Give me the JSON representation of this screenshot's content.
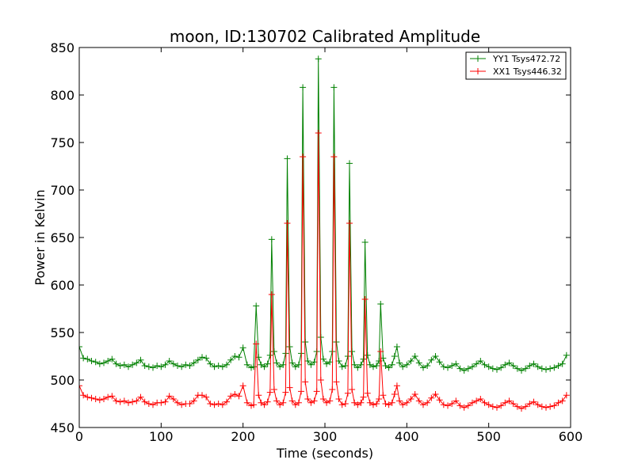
{
  "chart_data": {
    "type": "line",
    "title": "moon, ID:130702 Calibrated Amplitude",
    "xlabel": "Time (seconds)",
    "ylabel": "Power in Kelvin",
    "xlim": [
      0,
      600
    ],
    "ylim": [
      450,
      850
    ],
    "xticks": [
      0,
      100,
      200,
      300,
      400,
      500,
      600
    ],
    "yticks": [
      450,
      500,
      550,
      600,
      650,
      700,
      750,
      800,
      850
    ],
    "grid": false,
    "legend_position": "top-right",
    "series": [
      {
        "name": "YY1 Tsys472.72",
        "color": "#008000",
        "marker": "+",
        "x": [
          0,
          5,
          10,
          15,
          20,
          25,
          30,
          35,
          40,
          45,
          50,
          55,
          60,
          65,
          70,
          75,
          80,
          85,
          90,
          95,
          100,
          105,
          110,
          115,
          120,
          125,
          130,
          135,
          140,
          145,
          150,
          155,
          160,
          165,
          170,
          175,
          180,
          185,
          190,
          195,
          200,
          205,
          210,
          213,
          216,
          219,
          222,
          226,
          230,
          233,
          235,
          238,
          241,
          245,
          249,
          252,
          254,
          257,
          260,
          264,
          268,
          271,
          273,
          276,
          279,
          283,
          287,
          290,
          292,
          295,
          298,
          302,
          306,
          309,
          311,
          314,
          317,
          321,
          325,
          328,
          330,
          333,
          336,
          340,
          344,
          347,
          349,
          352,
          355,
          359,
          363,
          366,
          368,
          371,
          374,
          378,
          382,
          385,
          388,
          391,
          395,
          400,
          405,
          410,
          415,
          420,
          425,
          430,
          435,
          440,
          445,
          450,
          455,
          460,
          465,
          470,
          475,
          480,
          485,
          490,
          495,
          500,
          505,
          510,
          515,
          520,
          525,
          530,
          535,
          540,
          545,
          550,
          555,
          560,
          565,
          570,
          575,
          580,
          585,
          590,
          595
        ],
        "y": [
          535,
          523,
          522,
          520,
          519,
          517,
          518,
          520,
          522,
          517,
          515,
          516,
          514,
          516,
          518,
          521,
          515,
          514,
          513,
          515,
          514,
          516,
          520,
          517,
          515,
          514,
          516,
          515,
          518,
          521,
          524,
          523,
          517,
          514,
          515,
          514,
          516,
          521,
          525,
          524,
          534,
          516,
          513,
          514,
          578,
          524,
          516,
          514,
          517,
          526,
          648,
          530,
          518,
          514,
          516,
          528,
          733,
          535,
          518,
          514,
          516,
          528,
          808,
          540,
          520,
          516,
          519,
          530,
          838,
          545,
          522,
          517,
          519,
          530,
          808,
          540,
          520,
          514,
          515,
          525,
          728,
          530,
          516,
          513,
          516,
          522,
          645,
          526,
          516,
          514,
          515,
          520,
          580,
          523,
          515,
          513,
          516,
          525,
          535,
          518,
          514,
          516,
          520,
          525,
          518,
          513,
          515,
          521,
          525,
          519,
          514,
          513,
          515,
          517,
          512,
          510,
          512,
          514,
          517,
          520,
          516,
          514,
          512,
          511,
          513,
          516,
          518,
          515,
          512,
          510,
          512,
          515,
          517,
          514,
          512,
          511,
          512,
          513,
          515,
          517,
          526
        ]
      },
      {
        "name": "XX1 Tsys446.32",
        "color": "#ff0000",
        "marker": "+",
        "x": [
          0,
          5,
          10,
          15,
          20,
          25,
          30,
          35,
          40,
          45,
          50,
          55,
          60,
          65,
          70,
          75,
          80,
          85,
          90,
          95,
          100,
          105,
          110,
          115,
          120,
          125,
          130,
          135,
          140,
          145,
          150,
          155,
          160,
          165,
          170,
          175,
          180,
          185,
          190,
          195,
          200,
          205,
          210,
          213,
          216,
          219,
          222,
          226,
          230,
          233,
          235,
          238,
          241,
          245,
          249,
          252,
          254,
          257,
          260,
          264,
          268,
          271,
          273,
          276,
          279,
          283,
          287,
          290,
          292,
          295,
          298,
          302,
          306,
          309,
          311,
          314,
          317,
          321,
          325,
          328,
          330,
          333,
          336,
          340,
          344,
          347,
          349,
          352,
          355,
          359,
          363,
          366,
          368,
          371,
          374,
          378,
          382,
          385,
          388,
          391,
          395,
          400,
          405,
          410,
          415,
          420,
          425,
          430,
          435,
          440,
          445,
          450,
          455,
          460,
          465,
          470,
          475,
          480,
          485,
          490,
          495,
          500,
          505,
          510,
          515,
          520,
          525,
          530,
          535,
          540,
          545,
          550,
          555,
          560,
          565,
          570,
          575,
          580,
          585,
          590,
          595
        ],
        "y": [
          494,
          484,
          482,
          481,
          480,
          479,
          480,
          482,
          483,
          478,
          477,
          478,
          476,
          477,
          478,
          482,
          477,
          475,
          474,
          476,
          476,
          477,
          483,
          480,
          476,
          474,
          475,
          475,
          478,
          484,
          484,
          482,
          475,
          474,
          475,
          474,
          477,
          483,
          485,
          483,
          494,
          476,
          473,
          474,
          538,
          484,
          476,
          474,
          477,
          487,
          590,
          490,
          478,
          474,
          476,
          487,
          665,
          492,
          478,
          474,
          476,
          488,
          735,
          498,
          480,
          476,
          478,
          488,
          760,
          500,
          480,
          476,
          478,
          490,
          735,
          498,
          480,
          474,
          475,
          486,
          665,
          490,
          476,
          474,
          476,
          482,
          585,
          486,
          476,
          474,
          475,
          480,
          530,
          484,
          475,
          474,
          476,
          485,
          494,
          478,
          474,
          476,
          480,
          485,
          478,
          474,
          476,
          481,
          485,
          479,
          474,
          473,
          475,
          478,
          473,
          471,
          473,
          476,
          478,
          480,
          476,
          474,
          472,
          471,
          473,
          476,
          478,
          475,
          472,
          470,
          472,
          475,
          477,
          474,
          472,
          471,
          472,
          473,
          476,
          478,
          484
        ]
      }
    ]
  }
}
